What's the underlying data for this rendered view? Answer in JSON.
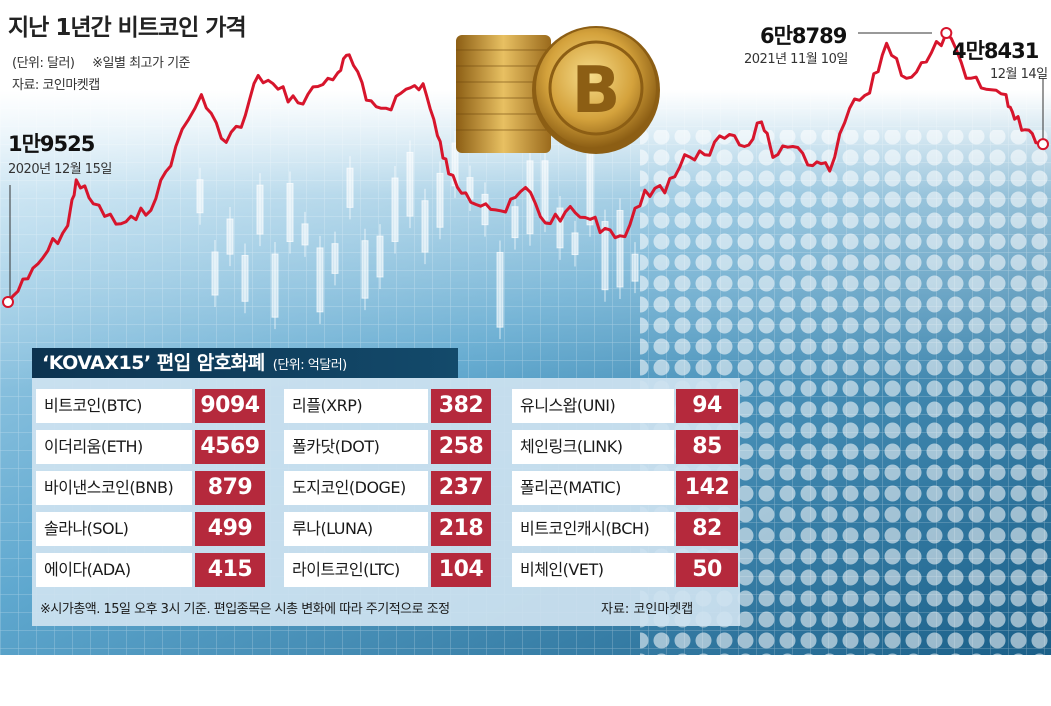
{
  "header": {
    "title": "지난 1년간 비트코인 가격",
    "unit_note": "(단위: 달러)",
    "basis_note": "※일별 최고가 기준",
    "source": "자료: 코인마켓캡"
  },
  "annotations": {
    "start": {
      "value": "1만9525",
      "date": "2020년 12월 15일"
    },
    "peak": {
      "value": "6만8789",
      "date": "2021년 11월 10일"
    },
    "end": {
      "value": "4만8431",
      "date": "12월 14일"
    }
  },
  "colors": {
    "line": "#d7152c",
    "value_cell": "#b5293c",
    "title_bar": "#0c3350",
    "panel": "#cde2f0"
  },
  "chart_data": {
    "type": "line",
    "title": "지난 1년간 비트코인 가격",
    "ylabel": "(단위: 달러)",
    "ylim": [
      15000,
      70000
    ],
    "x": [
      "2020-12-15",
      "2020-12-22",
      "2020-12-29",
      "2021-01-05",
      "2021-01-08",
      "2021-01-14",
      "2021-01-22",
      "2021-01-29",
      "2021-02-05",
      "2021-02-12",
      "2021-02-21",
      "2021-02-28",
      "2021-03-07",
      "2021-03-13",
      "2021-03-20",
      "2021-03-27",
      "2021-04-03",
      "2021-04-10",
      "2021-04-14",
      "2021-04-20",
      "2021-04-27",
      "2021-05-04",
      "2021-05-10",
      "2021-05-15",
      "2021-05-19",
      "2021-05-25",
      "2021-06-01",
      "2021-06-08",
      "2021-06-15",
      "2021-06-22",
      "2021-06-29",
      "2021-07-06",
      "2021-07-13",
      "2021-07-20",
      "2021-07-27",
      "2021-08-03",
      "2021-08-10",
      "2021-08-17",
      "2021-08-24",
      "2021-08-31",
      "2021-09-06",
      "2021-09-10",
      "2021-09-17",
      "2021-09-24",
      "2021-09-30",
      "2021-10-07",
      "2021-10-14",
      "2021-10-20",
      "2021-10-27",
      "2021-11-03",
      "2021-11-10",
      "2021-11-17",
      "2021-11-24",
      "2021-12-01",
      "2021-12-04",
      "2021-12-09",
      "2021-12-14"
    ],
    "y": [
      19525,
      23800,
      28900,
      33500,
      41900,
      37500,
      33800,
      34600,
      38500,
      48000,
      57500,
      49500,
      51500,
      61000,
      58500,
      56000,
      59000,
      61500,
      64800,
      56500,
      55000,
      58500,
      59500,
      50000,
      43000,
      39500,
      37500,
      36000,
      40500,
      34000,
      36000,
      35000,
      33000,
      31500,
      40000,
      39500,
      46500,
      46500,
      49500,
      48000,
      52500,
      46000,
      48000,
      44500,
      43500,
      55000,
      57800,
      66900,
      60500,
      63500,
      68789,
      60500,
      58500,
      57500,
      53000,
      51000,
      48431
    ]
  },
  "table": {
    "title": "‘KOVAX15’ 편입 암호화폐",
    "unit": "(단위: 억달러)",
    "columns": [
      [
        {
          "name": "비트코인(BTC)",
          "value": "9094"
        },
        {
          "name": "이더리움(ETH)",
          "value": "4569"
        },
        {
          "name": "바이낸스코인(BNB)",
          "value": "879"
        },
        {
          "name": "솔라나(SOL)",
          "value": "499"
        },
        {
          "name": "에이다(ADA)",
          "value": "415"
        }
      ],
      [
        {
          "name": "리플(XRP)",
          "value": "382"
        },
        {
          "name": "폴카닷(DOT)",
          "value": "258"
        },
        {
          "name": "도지코인(DOGE)",
          "value": "237"
        },
        {
          "name": "루나(LUNA)",
          "value": "218"
        },
        {
          "name": "라이트코인(LTC)",
          "value": "104"
        }
      ],
      [
        {
          "name": "유니스왑(UNI)",
          "value": "94"
        },
        {
          "name": "체인링크(LINK)",
          "value": "85"
        },
        {
          "name": "폴리곤(MATIC)",
          "value": "142"
        },
        {
          "name": "비트코인캐시(BCH)",
          "value": "82"
        },
        {
          "name": "비체인(VET)",
          "value": "50"
        }
      ]
    ],
    "footnote": "※시가총액. 15일 오후 3시 기준. 편입종목은 시총 변화에 따라 주기적으로 조정",
    "source": "자료: 코인마켓캡"
  }
}
